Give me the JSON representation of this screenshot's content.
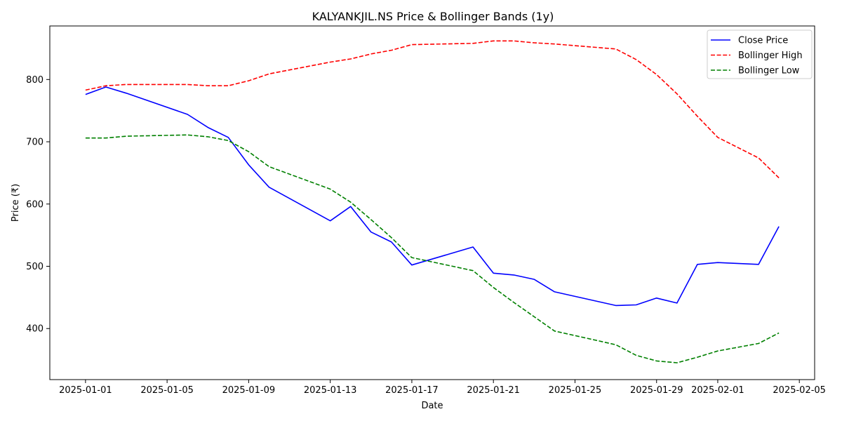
{
  "chart_data": {
    "type": "line",
    "title": "KALYANKJIL.NS Price & Bollinger Bands (1y)",
    "xlabel": "Date",
    "ylabel": "Price (₹)",
    "grid": false,
    "legend_position": "top-right",
    "x_range": [
      "2024-12-30T06:00",
      "2025-02-05T18:00"
    ],
    "ylim": [
      318,
      886
    ],
    "x_ticks": [
      "2025-01-01",
      "2025-01-05",
      "2025-01-09",
      "2025-01-13",
      "2025-01-17",
      "2025-01-21",
      "2025-01-25",
      "2025-01-29",
      "2025-02-01",
      "2025-02-05"
    ],
    "y_ticks": [
      400,
      500,
      600,
      700,
      800
    ],
    "series": [
      {
        "name": "Close Price",
        "color": "#0000ff",
        "dash": "solid",
        "points": [
          [
            "2025-01-01",
            776
          ],
          [
            "2025-01-02",
            788
          ],
          [
            "2025-01-03",
            778
          ],
          [
            "2025-01-06",
            744
          ],
          [
            "2025-01-07",
            723
          ],
          [
            "2025-01-08",
            707
          ],
          [
            "2025-01-09",
            663
          ],
          [
            "2025-01-10",
            627
          ],
          [
            "2025-01-13",
            573
          ],
          [
            "2025-01-14",
            596
          ],
          [
            "2025-01-15",
            555
          ],
          [
            "2025-01-16",
            539
          ],
          [
            "2025-01-17",
            502
          ],
          [
            "2025-01-20",
            531
          ],
          [
            "2025-01-21",
            489
          ],
          [
            "2025-01-22",
            486
          ],
          [
            "2025-01-23",
            479
          ],
          [
            "2025-01-24",
            459
          ],
          [
            "2025-01-27",
            437
          ],
          [
            "2025-01-28",
            438
          ],
          [
            "2025-01-29",
            449
          ],
          [
            "2025-01-30",
            441
          ],
          [
            "2025-01-31",
            503
          ],
          [
            "2025-02-01",
            506
          ],
          [
            "2025-02-03",
            503
          ],
          [
            "2025-02-04",
            564
          ]
        ]
      },
      {
        "name": "Bollinger High",
        "color": "#ff0000",
        "dash": "dashed",
        "points": [
          [
            "2025-01-01",
            783
          ],
          [
            "2025-01-02",
            790
          ],
          [
            "2025-01-03",
            792
          ],
          [
            "2025-01-06",
            792
          ],
          [
            "2025-01-07",
            790
          ],
          [
            "2025-01-08",
            790
          ],
          [
            "2025-01-09",
            798
          ],
          [
            "2025-01-10",
            809
          ],
          [
            "2025-01-13",
            828
          ],
          [
            "2025-01-14",
            833
          ],
          [
            "2025-01-15",
            841
          ],
          [
            "2025-01-16",
            847
          ],
          [
            "2025-01-17",
            856
          ],
          [
            "2025-01-20",
            858
          ],
          [
            "2025-01-21",
            862
          ],
          [
            "2025-01-22",
            862
          ],
          [
            "2025-01-23",
            859
          ],
          [
            "2025-01-24",
            857
          ],
          [
            "2025-01-27",
            849
          ],
          [
            "2025-01-28",
            832
          ],
          [
            "2025-01-29",
            808
          ],
          [
            "2025-01-30",
            777
          ],
          [
            "2025-01-31",
            741
          ],
          [
            "2025-02-01",
            707
          ],
          [
            "2025-02-03",
            674
          ],
          [
            "2025-02-04",
            642
          ]
        ]
      },
      {
        "name": "Bollinger Low",
        "color": "#008000",
        "dash": "dashed",
        "points": [
          [
            "2025-01-01",
            706
          ],
          [
            "2025-01-02",
            706
          ],
          [
            "2025-01-03",
            709
          ],
          [
            "2025-01-06",
            711
          ],
          [
            "2025-01-07",
            708
          ],
          [
            "2025-01-08",
            702
          ],
          [
            "2025-01-09",
            684
          ],
          [
            "2025-01-10",
            660
          ],
          [
            "2025-01-13",
            624
          ],
          [
            "2025-01-14",
            603
          ],
          [
            "2025-01-15",
            575
          ],
          [
            "2025-01-16",
            546
          ],
          [
            "2025-01-17",
            514
          ],
          [
            "2025-01-20",
            493
          ],
          [
            "2025-01-21",
            466
          ],
          [
            "2025-01-22",
            442
          ],
          [
            "2025-01-23",
            419
          ],
          [
            "2025-01-24",
            396
          ],
          [
            "2025-01-27",
            374
          ],
          [
            "2025-01-28",
            357
          ],
          [
            "2025-01-29",
            348
          ],
          [
            "2025-01-30",
            345
          ],
          [
            "2025-01-31",
            354
          ],
          [
            "2025-02-01",
            364
          ],
          [
            "2025-02-03",
            376
          ],
          [
            "2025-02-04",
            393
          ]
        ]
      }
    ]
  }
}
